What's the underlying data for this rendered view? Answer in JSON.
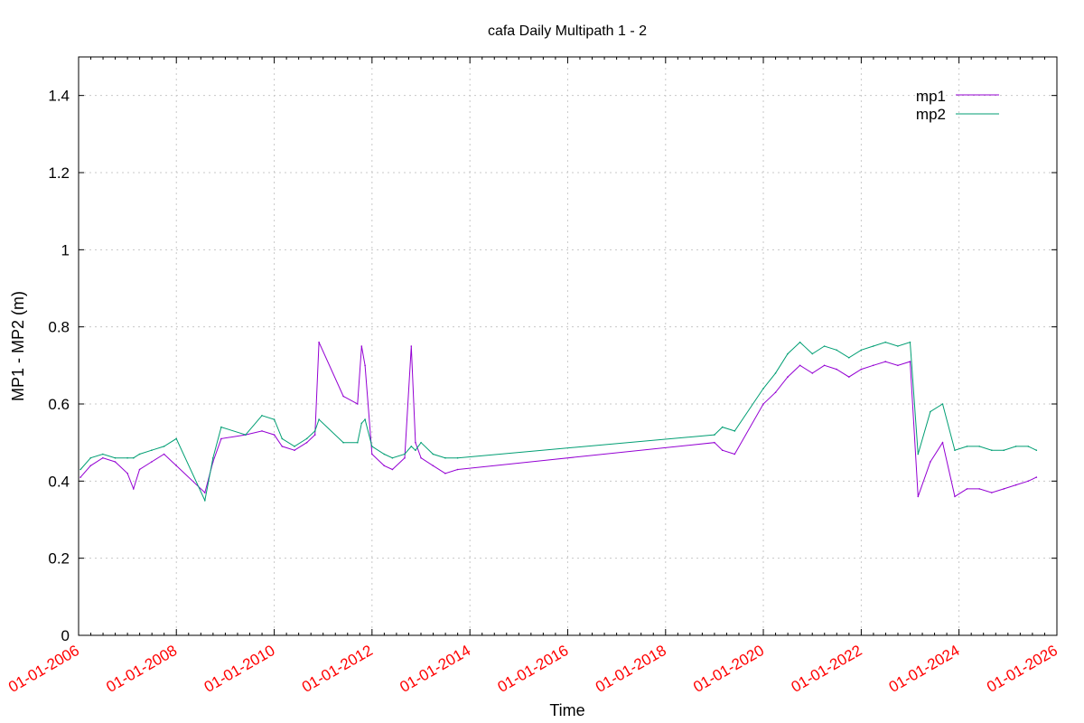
{
  "chart_data": {
    "type": "line",
    "title": "cafa Daily Multipath 1 - 2",
    "xlabel": "Time",
    "ylabel": "MP1 - MP2 (m)",
    "xlim": [
      "2006-01-01",
      "2026-01-01"
    ],
    "ylim": [
      0,
      1.5
    ],
    "yticks": [
      0,
      0.2,
      0.4,
      0.6,
      0.8,
      1,
      1.2,
      1.4
    ],
    "ytick_labels": [
      "0",
      "0.2",
      "0.4",
      "0.6",
      "0.8",
      "1",
      "1.2",
      "1.4"
    ],
    "xticks": [
      "2006-01-01",
      "2008-01-01",
      "2010-01-01",
      "2012-01-01",
      "2014-01-01",
      "2016-01-01",
      "2018-01-01",
      "2020-01-01",
      "2022-01-01",
      "2024-01-01",
      "2026-01-01"
    ],
    "xtick_labels": [
      "01-01-2006",
      "01-01-2008",
      "01-01-2010",
      "01-01-2012",
      "01-01-2014",
      "01-01-2016",
      "01-01-2018",
      "01-01-2020",
      "01-01-2022",
      "01-01-2024",
      "01-01-2026"
    ],
    "grid": true,
    "legend_position": "top-right",
    "colors": {
      "mp1": "#9400d3",
      "mp2": "#009e73",
      "xtick_text": "#ff0000"
    },
    "series": [
      {
        "name": "mp1",
        "x": [
          "2006-01-15",
          "2006-04-01",
          "2006-07-01",
          "2006-10-01",
          "2007-01-01",
          "2007-02-15",
          "2007-04-01",
          "2007-07-01",
          "2007-10-01",
          "2008-01-01",
          "2008-08-01",
          "2008-10-01",
          "2008-12-01",
          "2009-06-01",
          "2009-10-01",
          "2010-01-01",
          "2010-03-01",
          "2010-06-01",
          "2010-09-01",
          "2010-11-01",
          "2010-12-01",
          "2011-06-01",
          "2011-09-15",
          "2011-10-15",
          "2011-11-10",
          "2012-01-01",
          "2012-04-01",
          "2012-06-01",
          "2012-09-01",
          "2012-10-20",
          "2012-11-20",
          "2013-01-01",
          "2013-04-01",
          "2013-07-01",
          "2013-10-01",
          "2019-01-01",
          "2019-03-01",
          "2019-06-01",
          "2020-01-01",
          "2020-04-01",
          "2020-07-01",
          "2020-10-01",
          "2021-01-01",
          "2021-04-01",
          "2021-07-01",
          "2021-10-01",
          "2022-01-01",
          "2022-04-01",
          "2022-07-01",
          "2022-10-01",
          "2023-01-01",
          "2023-03-01",
          "2023-06-01",
          "2023-09-01",
          "2023-12-01",
          "2024-03-01",
          "2024-06-01",
          "2024-09-01",
          "2024-12-01",
          "2025-03-01",
          "2025-06-01",
          "2025-08-01"
        ],
        "y": [
          0.41,
          0.44,
          0.46,
          0.45,
          0.42,
          0.38,
          0.43,
          0.45,
          0.47,
          0.44,
          0.37,
          0.45,
          0.51,
          0.52,
          0.53,
          0.52,
          0.49,
          0.48,
          0.5,
          0.52,
          0.76,
          0.62,
          0.6,
          0.75,
          0.7,
          0.47,
          0.44,
          0.43,
          0.46,
          0.75,
          0.5,
          0.46,
          0.44,
          0.42,
          0.43,
          0.5,
          0.48,
          0.47,
          0.6,
          0.63,
          0.67,
          0.7,
          0.68,
          0.7,
          0.69,
          0.67,
          0.69,
          0.7,
          0.71,
          0.7,
          0.71,
          0.36,
          0.45,
          0.5,
          0.36,
          0.38,
          0.38,
          0.37,
          0.38,
          0.39,
          0.4,
          0.41
        ]
      },
      {
        "name": "mp2",
        "x": [
          "2006-01-15",
          "2006-04-01",
          "2006-07-01",
          "2006-10-01",
          "2007-01-01",
          "2007-02-15",
          "2007-04-01",
          "2007-07-01",
          "2007-10-01",
          "2008-01-01",
          "2008-08-01",
          "2008-10-01",
          "2008-12-01",
          "2009-06-01",
          "2009-10-01",
          "2010-01-01",
          "2010-03-01",
          "2010-06-01",
          "2010-09-01",
          "2010-11-01",
          "2010-12-01",
          "2011-06-01",
          "2011-09-15",
          "2011-10-15",
          "2011-11-10",
          "2012-01-01",
          "2012-04-01",
          "2012-06-01",
          "2012-09-01",
          "2012-10-20",
          "2012-11-20",
          "2013-01-01",
          "2013-04-01",
          "2013-07-01",
          "2013-10-01",
          "2019-01-01",
          "2019-03-01",
          "2019-06-01",
          "2020-01-01",
          "2020-04-01",
          "2020-07-01",
          "2020-10-01",
          "2021-01-01",
          "2021-04-01",
          "2021-07-01",
          "2021-10-01",
          "2022-01-01",
          "2022-04-01",
          "2022-07-01",
          "2022-10-01",
          "2023-01-01",
          "2023-03-01",
          "2023-06-01",
          "2023-09-01",
          "2023-12-01",
          "2024-03-01",
          "2024-06-01",
          "2024-09-01",
          "2024-12-01",
          "2025-03-01",
          "2025-06-01",
          "2025-08-01"
        ],
        "y": [
          0.43,
          0.46,
          0.47,
          0.46,
          0.46,
          0.46,
          0.47,
          0.48,
          0.49,
          0.51,
          0.35,
          0.46,
          0.54,
          0.52,
          0.57,
          0.56,
          0.51,
          0.49,
          0.51,
          0.53,
          0.56,
          0.5,
          0.5,
          0.55,
          0.56,
          0.49,
          0.47,
          0.46,
          0.47,
          0.49,
          0.48,
          0.5,
          0.47,
          0.46,
          0.46,
          0.52,
          0.54,
          0.53,
          0.64,
          0.68,
          0.73,
          0.76,
          0.73,
          0.75,
          0.74,
          0.72,
          0.74,
          0.75,
          0.76,
          0.75,
          0.76,
          0.47,
          0.58,
          0.6,
          0.48,
          0.49,
          0.49,
          0.48,
          0.48,
          0.49,
          0.49,
          0.48
        ]
      }
    ]
  }
}
